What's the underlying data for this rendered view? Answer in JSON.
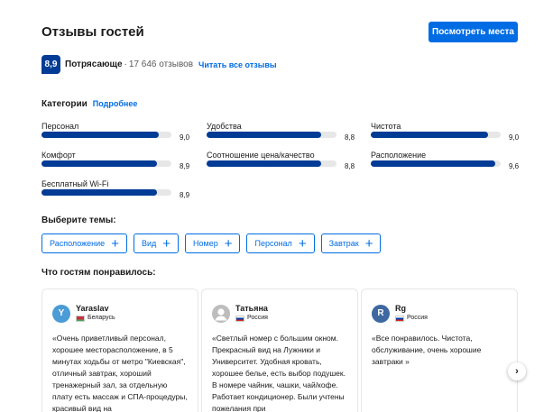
{
  "header": {
    "title": "Отзывы гостей",
    "see_places_label": "Посмотреть места"
  },
  "score": {
    "value": "8,9",
    "word": "Потрясающе",
    "separator": "·",
    "count": "17 646 отзывов",
    "read_all": "Читать все отзывы"
  },
  "categories": {
    "title": "Категории",
    "more": "Подробнее",
    "items": [
      {
        "label": "Персонал",
        "value": "9,0",
        "score": 9.0
      },
      {
        "label": "Удобства",
        "value": "8,8",
        "score": 8.8
      },
      {
        "label": "Чистота",
        "value": "9,0",
        "score": 9.0
      },
      {
        "label": "Комфорт",
        "value": "8,9",
        "score": 8.9
      },
      {
        "label": "Соотношение цена/качество",
        "value": "8,8",
        "score": 8.8
      },
      {
        "label": "Расположение",
        "value": "9,6",
        "score": 9.6
      },
      {
        "label": "Бесплатный Wi-Fi",
        "value": "8,9",
        "score": 8.9
      }
    ],
    "max_score": 10
  },
  "topics": {
    "title": "Выберите темы:",
    "chips": [
      "Расположение",
      "Вид",
      "Номер",
      "Персонал",
      "Завтрак"
    ],
    "plus_symbol": "+"
  },
  "liked": {
    "title": "Что гостям понравилось:",
    "reviews": [
      {
        "initial": "Y",
        "avatar_color": "#4a9bd6",
        "name": "Yaraslav",
        "country": "Беларусь",
        "flag": "by",
        "text": "«Очень приветливый персонал, хорошее месторасположение, в 5 минутах ходьбы от метро \"Киевская\", отличный завтрак, хороший тренажерный зал, за отдельную плату есть массаж и СПА-процедуры, красивый вид на"
      },
      {
        "initial": "",
        "avatar_color": "#bdbdbd",
        "name": "Татьяна",
        "country": "Россия",
        "flag": "ru",
        "text": "«Светлый номер с большим окном. Прекрасный вид на Лужники и Университет. Удобная кровать, хорошее белье, есть выбор подушек. В номере чайник, чашки, чай/кофе. Работает кондиционер. Были учтены пожелания при"
      },
      {
        "initial": "R",
        "avatar_color": "#3e68a0",
        "name": "Rg",
        "country": "Россия",
        "flag": "ru",
        "text": "«Все понравилось. Чистота, обслуживание, очень хорошие завтраки »"
      }
    ],
    "next_symbol": "›"
  }
}
